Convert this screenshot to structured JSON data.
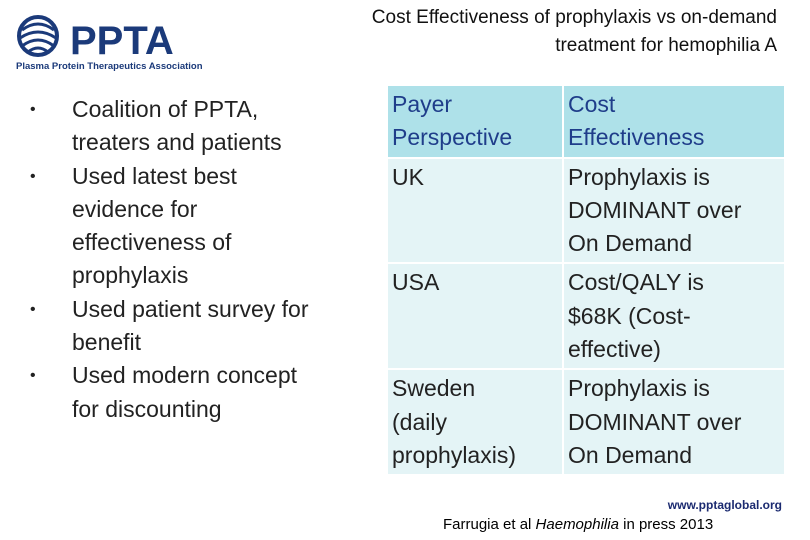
{
  "logo": {
    "name": "PPTA",
    "tagline": "Plasma Protein Therapeutics Association"
  },
  "title_line1": "Cost Effectiveness of prophylaxis vs on-demand",
  "title_line2": "treatment for hemophilia A",
  "bullets": [
    {
      "line1": "Coalition of PPTA,",
      "line2": "treaters and patients"
    },
    {
      "line1": "Used latest best",
      "line2": "evidence for",
      "line3": "effectiveness of",
      "line4": "prophylaxis"
    },
    {
      "line1": "Used patient survey for",
      "line2": "benefit"
    },
    {
      "line1": "Used modern concept",
      "line2": "for discounting"
    }
  ],
  "table": {
    "headers": [
      {
        "line1": "Payer",
        "line2": "Perspective"
      },
      {
        "line1": "Cost",
        "line2": "Effectiveness"
      }
    ],
    "rows": [
      {
        "payer": [
          "UK"
        ],
        "result": [
          "Prophylaxis is",
          "DOMINANT over",
          "On Demand"
        ]
      },
      {
        "payer": [
          "USA"
        ],
        "result": [
          "Cost/QALY is",
          "$68K (Cost-",
          "effective)"
        ]
      },
      {
        "payer": [
          "Sweden",
          "(daily",
          "prophylaxis)"
        ],
        "result": [
          "Prophylaxis is",
          "DOMINANT over",
          "On Demand"
        ]
      }
    ]
  },
  "footer": {
    "url": "www.pptaglobal.org",
    "citation_prefix": "Farrugia et al ",
    "citation_journal": "Haemophilia",
    "citation_suffix": " in press 2013"
  },
  "colors": {
    "brand_blue": "#1b3a7a",
    "header_bg": "#aee1e9",
    "row_bg": "#e4f4f6"
  }
}
